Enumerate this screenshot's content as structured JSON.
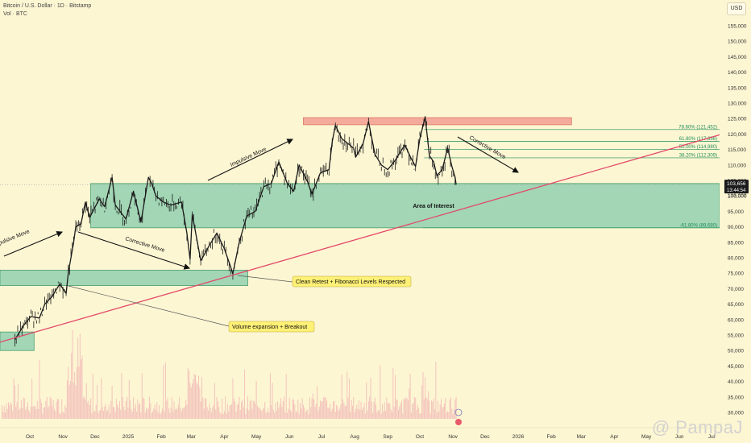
{
  "header": {
    "title": "Bitcoin / U.S. Dollar · 1D · Bitstamp",
    "volume_label": "Vol · BTC",
    "currency_button": "USD"
  },
  "price_tags": {
    "last_price": "103,656",
    "countdown": "13:44:54",
    "partial_label": "103,000"
  },
  "watermark": "@ PampaJ",
  "colors": {
    "background": "#fdf6d3",
    "zone_green": "#93d1b0",
    "zone_border": "#2b8f5e",
    "resistance": "#f4a89a",
    "trendline": "#e24a6a",
    "fib_text": "#1f8f5b",
    "candle": "#1a1a1a",
    "volume": "#f0b6b6",
    "callout_bg": "#fff176"
  },
  "chart_data": {
    "type": "candlestick",
    "title": "Bitcoin / U.S. Dollar · 1D · Bitstamp",
    "y_axis": {
      "ylim": [
        26000,
        159000
      ],
      "ticks": [
        30000,
        35000,
        40000,
        45000,
        50000,
        55000,
        60000,
        65000,
        70000,
        75000,
        80000,
        85000,
        90000,
        95000,
        100000,
        105000,
        110000,
        115000,
        120000,
        125000,
        130000,
        135000,
        140000,
        145000,
        150000,
        155000
      ],
      "tick_labels": [
        "30,000",
        "35,000",
        "40,000",
        "45,000",
        "50,000",
        "55,000",
        "60,000",
        "65,000",
        "70,000",
        "75,000",
        "80,000",
        "85,000",
        "90,000",
        "95,000",
        "100,000",
        "105,000",
        "110,000",
        "115,000",
        "120,000",
        "125,000",
        "130,000",
        "135,000",
        "140,000",
        "145,000",
        "150,000",
        "155,000"
      ]
    },
    "x_axis": {
      "labels": [
        "Oct",
        "Nov",
        "Dec",
        "2025",
        "Feb",
        "Mar",
        "Apr",
        "May",
        "Jun",
        "Jul",
        "Aug",
        "Sep",
        "Oct",
        "Nov",
        "Dec",
        "2026",
        "Feb",
        "Mar",
        "Apr",
        "May",
        "Jun",
        "Jul"
      ],
      "dates": [
        "2024-10-01",
        "2024-11-01",
        "2024-12-01",
        "2025-01-01",
        "2025-02-01",
        "2025-03-01",
        "2025-04-01",
        "2025-05-01",
        "2025-06-01",
        "2025-07-01",
        "2025-08-01",
        "2025-09-01",
        "2025-10-01",
        "2025-11-01",
        "2025-12-01",
        "2026-01-01",
        "2026-02-01",
        "2026-03-01",
        "2026-04-01",
        "2026-05-01",
        "2026-06-01",
        "2026-07-01"
      ]
    },
    "price_path": [
      [
        "2024-09-17",
        53500
      ],
      [
        "2024-09-25",
        58000
      ],
      [
        "2024-10-02",
        61000
      ],
      [
        "2024-10-10",
        60500
      ],
      [
        "2024-10-15",
        65000
      ],
      [
        "2024-10-22",
        67500
      ],
      [
        "2024-10-29",
        71500
      ],
      [
        "2024-11-04",
        68500
      ],
      [
        "2024-11-06",
        75000
      ],
      [
        "2024-11-11",
        85000
      ],
      [
        "2024-11-13",
        90000
      ],
      [
        "2024-11-18",
        91000
      ],
      [
        "2024-11-22",
        98000
      ],
      [
        "2024-11-26",
        93000
      ],
      [
        "2024-12-05",
        99000
      ],
      [
        "2024-12-10",
        96500
      ],
      [
        "2024-12-17",
        106000
      ],
      [
        "2024-12-20",
        97000
      ],
      [
        "2024-12-30",
        92500
      ],
      [
        "2025-01-06",
        101500
      ],
      [
        "2025-01-13",
        91500
      ],
      [
        "2025-01-20",
        106000
      ],
      [
        "2025-01-23",
        104000
      ],
      [
        "2025-01-27",
        100000
      ],
      [
        "2025-02-03",
        98000
      ],
      [
        "2025-02-10",
        97000
      ],
      [
        "2025-02-20",
        98000
      ],
      [
        "2025-02-25",
        88000
      ],
      [
        "2025-02-28",
        79500
      ],
      [
        "2025-03-02",
        94000
      ],
      [
        "2025-03-10",
        79000
      ],
      [
        "2025-03-18",
        84000
      ],
      [
        "2025-03-25",
        88000
      ],
      [
        "2025-04-01",
        83000
      ],
      [
        "2025-04-07",
        77000
      ],
      [
        "2025-04-09",
        74800
      ],
      [
        "2025-04-15",
        85000
      ],
      [
        "2025-04-22",
        93500
      ],
      [
        "2025-04-30",
        95000
      ],
      [
        "2025-05-08",
        103000
      ],
      [
        "2025-05-15",
        104000
      ],
      [
        "2025-05-22",
        111000
      ],
      [
        "2025-05-30",
        104000
      ],
      [
        "2025-06-05",
        101500
      ],
      [
        "2025-06-10",
        110000
      ],
      [
        "2025-06-18",
        104500
      ],
      [
        "2025-06-22",
        100500
      ],
      [
        "2025-06-30",
        107500
      ],
      [
        "2025-07-08",
        108500
      ],
      [
        "2025-07-11",
        117500
      ],
      [
        "2025-07-14",
        122800
      ],
      [
        "2025-07-20",
        118500
      ],
      [
        "2025-07-31",
        115500
      ],
      [
        "2025-08-02",
        112500
      ],
      [
        "2025-08-09",
        117000
      ],
      [
        "2025-08-14",
        124000
      ],
      [
        "2025-08-20",
        113500
      ],
      [
        "2025-08-26",
        110000
      ],
      [
        "2025-09-01",
        108500
      ],
      [
        "2025-09-08",
        111500
      ],
      [
        "2025-09-17",
        116500
      ],
      [
        "2025-09-22",
        112700
      ],
      [
        "2025-09-27",
        109500
      ],
      [
        "2025-10-01",
        118500
      ],
      [
        "2025-10-06",
        125500
      ],
      [
        "2025-10-10",
        113000
      ],
      [
        "2025-10-14",
        111000
      ],
      [
        "2025-10-17",
        106500
      ],
      [
        "2025-10-22",
        108500
      ],
      [
        "2025-10-27",
        115500
      ],
      [
        "2025-10-31",
        109500
      ],
      [
        "2025-11-03",
        106000
      ],
      [
        "2025-11-04",
        103656
      ]
    ],
    "volume_max": 1,
    "zones": [
      {
        "name": "Area of Interest",
        "from": "2024-11-27",
        "to": "2026-07-20",
        "low": 89680,
        "high": 104000
      },
      {
        "name": "lower demand zone",
        "from": "2024-09-01",
        "to": "2025-04-23",
        "low": 71000,
        "high": 76000
      },
      {
        "name": "base zone",
        "from": "2024-09-01",
        "to": "2024-10-05",
        "low": 50000,
        "high": 56000
      },
      {
        "name": "resistance zone",
        "from": "2025-06-14",
        "to": "2026-02-20",
        "low": 123000,
        "high": 125300
      }
    ],
    "trendline": [
      [
        "2024-09-01",
        52500
      ],
      [
        "2026-06-01",
        116000
      ]
    ],
    "fibonacci_levels": [
      {
        "label": "78.60% (121,452)",
        "value": 121452
      },
      {
        "label": "61.80% (117,656)",
        "value": 117656
      },
      {
        "label": "50.00% (114,980)",
        "value": 114980
      },
      {
        "label": "38.20% (112,309)",
        "value": 112309
      },
      {
        "label": "-61.80% (89,680)",
        "value": 89680
      }
    ],
    "annotations": {
      "impulsive_move_1": "Impulsive Move",
      "corrective_move_1": "Corrective Move",
      "impulsive_move_2": "Impulsive Move",
      "corrective_move_2": "Corrective Move",
      "area_of_interest": "Area of Interest",
      "clean_retest": "Clean Retest + Fibonacci Levels Respected",
      "volume_expansion": "Volume expansion + Breakout"
    }
  }
}
